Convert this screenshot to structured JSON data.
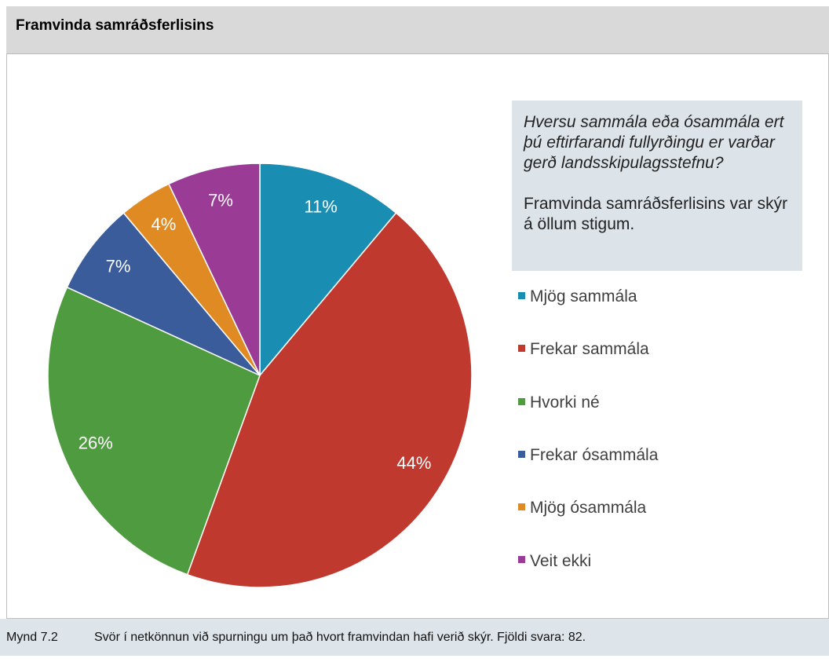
{
  "chart_data": {
    "type": "pie",
    "title": "Framvinda samráðsferlisins",
    "question": "Hversu sammála eða ósammála ert þú eftirfarandi fullyrðingu er varðar gerð landsskipulagsstefnu?",
    "statement": "Framvinda samráðsferlisins var skýr á öllum stigum.",
    "categories": [
      "Mjög sammála",
      "Frekar sammála",
      "Hvorki né",
      "Frekar ósammála",
      "Mjög ósammála",
      "Veit ekki"
    ],
    "values": [
      11,
      44,
      26,
      7,
      4,
      7
    ],
    "value_labels": [
      "11%",
      "44%",
      "26%",
      "7%",
      "4%",
      "7%"
    ],
    "colors": [
      "#1a8db3",
      "#c0392f",
      "#4f9b3f",
      "#3b5c9b",
      "#e08a24",
      "#9a3c95"
    ],
    "figure_label": "Mynd 7.2",
    "caption": "Svör í netkönnun við spurningu um það hvort framvindan hafi verið skýr. Fjöldi svara: 82."
  }
}
